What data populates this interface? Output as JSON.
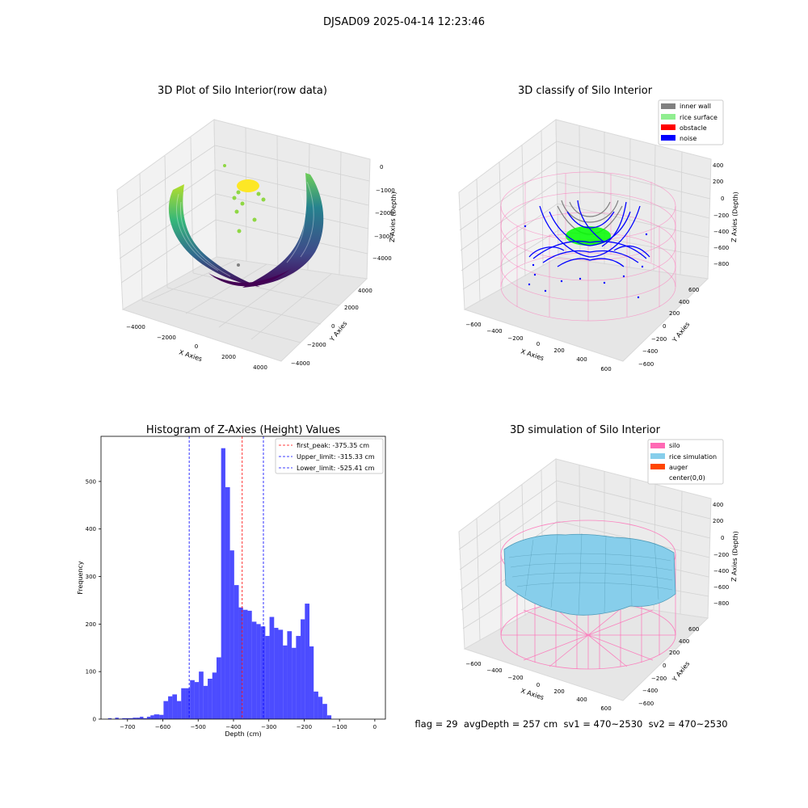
{
  "figure": {
    "suptitle": "DJSAD09 2025-04-14 12:23:46",
    "footer": "flag = 29  avgDepth = 257 cm  sv1 = 470~2530  sv2 = 470~2530"
  },
  "panels": {
    "raw": {
      "title": "3D Plot of Silo Interior(row data)",
      "xlabel": "X Axies",
      "ylabel": "Y Axies",
      "zlabel": "Z Axies (Depth)",
      "xticks": [
        "−4000",
        "−2000",
        "0",
        "2000",
        "4000"
      ],
      "yticks": [
        "−4000",
        "−2000",
        "0",
        "2000",
        "4000"
      ],
      "zticks": [
        "0",
        "−1000",
        "−2000",
        "−3000",
        "−4000"
      ]
    },
    "classify": {
      "title": "3D classify of Silo Interior",
      "xlabel": "X Axies",
      "ylabel": "Y Axies",
      "zlabel": "Z Axies (Depth)",
      "xticks": [
        "−600",
        "−400",
        "−200",
        "0",
        "200",
        "400",
        "600"
      ],
      "yticks": [
        "−600",
        "−400",
        "−200",
        "0",
        "200",
        "400",
        "600"
      ],
      "zticks": [
        "400",
        "200",
        "0",
        "−200",
        "−400",
        "−600",
        "−800"
      ],
      "legend": [
        {
          "label": "inner wall",
          "color": "#808080"
        },
        {
          "label": "rice surface",
          "color": "#90ee90"
        },
        {
          "label": "obstacle",
          "color": "#ff0000"
        },
        {
          "label": "noise",
          "color": "#0000ff"
        }
      ]
    },
    "simulation": {
      "title": "3D simulation of Silo Interior",
      "xlabel": "X Axies",
      "ylabel": "Y Axies",
      "zlabel": "Z Axies (Depth)",
      "xticks": [
        "−600",
        "−400",
        "−200",
        "0",
        "200",
        "400",
        "600"
      ],
      "yticks": [
        "−600",
        "−400",
        "−200",
        "0",
        "200",
        "400",
        "600"
      ],
      "zticks": [
        "400",
        "200",
        "0",
        "−200",
        "−400",
        "−600",
        "−800"
      ],
      "legend": [
        {
          "label": "silo",
          "color": "#ff69b4"
        },
        {
          "label": "rice simulation",
          "color": "#87ceeb"
        },
        {
          "label": "auger",
          "color": "#ff4500"
        },
        {
          "label": "center(0,0)",
          "color": "#ffffff"
        }
      ]
    }
  },
  "chart_data": [
    {
      "type": "histogram",
      "title": "Histogram of Z-Axies (Height) Values",
      "xlabel": "Depth (cm)",
      "ylabel": "Frequency",
      "xlim": [
        -775,
        30
      ],
      "ylim": [
        0,
        595
      ],
      "xticks": [
        -700,
        -600,
        -500,
        -400,
        -300,
        -200,
        -100,
        0
      ],
      "yticks": [
        0,
        100,
        200,
        300,
        400,
        500
      ],
      "bar_color": "#0000ff",
      "bar_opacity": 0.7,
      "bins": [
        {
          "left": -775,
          "right": -765,
          "count": 0
        },
        {
          "left": -765,
          "right": -755,
          "count": 0
        },
        {
          "left": -755,
          "right": -745,
          "count": 2
        },
        {
          "left": -745,
          "right": -735,
          "count": 0
        },
        {
          "left": -735,
          "right": -725,
          "count": 3
        },
        {
          "left": -725,
          "right": -715,
          "count": 1
        },
        {
          "left": -715,
          "right": -705,
          "count": 2
        },
        {
          "left": -705,
          "right": -695,
          "count": 2
        },
        {
          "left": -695,
          "right": -685,
          "count": 2
        },
        {
          "left": -685,
          "right": -675,
          "count": 3
        },
        {
          "left": -675,
          "right": -665,
          "count": 3
        },
        {
          "left": -665,
          "right": -655,
          "count": 5
        },
        {
          "left": -655,
          "right": -645,
          "count": 2
        },
        {
          "left": -645,
          "right": -635,
          "count": 5
        },
        {
          "left": -635,
          "right": -625,
          "count": 8
        },
        {
          "left": -625,
          "right": -610,
          "count": 10
        },
        {
          "left": -610,
          "right": -598,
          "count": 9
        },
        {
          "left": -598,
          "right": -585,
          "count": 38
        },
        {
          "left": -585,
          "right": -573,
          "count": 48
        },
        {
          "left": -573,
          "right": -560,
          "count": 52
        },
        {
          "left": -560,
          "right": -548,
          "count": 38
        },
        {
          "left": -548,
          "right": -535,
          "count": 65
        },
        {
          "left": -535,
          "right": -523,
          "count": 65
        },
        {
          "left": -523,
          "right": -510,
          "count": 82
        },
        {
          "left": -510,
          "right": -498,
          "count": 78
        },
        {
          "left": -498,
          "right": -485,
          "count": 100
        },
        {
          "left": -485,
          "right": -473,
          "count": 70
        },
        {
          "left": -473,
          "right": -460,
          "count": 85
        },
        {
          "left": -460,
          "right": -448,
          "count": 98
        },
        {
          "left": -448,
          "right": -435,
          "count": 130
        },
        {
          "left": -435,
          "right": -423,
          "count": 570
        },
        {
          "left": -423,
          "right": -410,
          "count": 488
        },
        {
          "left": -410,
          "right": -398,
          "count": 355
        },
        {
          "left": -398,
          "right": -385,
          "count": 282
        },
        {
          "left": -385,
          "right": -373,
          "count": 235
        },
        {
          "left": -373,
          "right": -360,
          "count": 230
        },
        {
          "left": -360,
          "right": -348,
          "count": 228
        },
        {
          "left": -348,
          "right": -335,
          "count": 205
        },
        {
          "left": -335,
          "right": -323,
          "count": 200
        },
        {
          "left": -323,
          "right": -310,
          "count": 195
        },
        {
          "left": -310,
          "right": -298,
          "count": 175
        },
        {
          "left": -298,
          "right": -285,
          "count": 215
        },
        {
          "left": -285,
          "right": -273,
          "count": 192
        },
        {
          "left": -273,
          "right": -260,
          "count": 188
        },
        {
          "left": -260,
          "right": -248,
          "count": 155
        },
        {
          "left": -248,
          "right": -235,
          "count": 185
        },
        {
          "left": -235,
          "right": -223,
          "count": 150
        },
        {
          "left": -223,
          "right": -210,
          "count": 175
        },
        {
          "left": -210,
          "right": -198,
          "count": 210
        },
        {
          "left": -198,
          "right": -185,
          "count": 243
        },
        {
          "left": -185,
          "right": -173,
          "count": 153
        },
        {
          "left": -173,
          "right": -160,
          "count": 58
        },
        {
          "left": -160,
          "right": -148,
          "count": 47
        },
        {
          "left": -148,
          "right": -135,
          "count": 32
        },
        {
          "left": -135,
          "right": -123,
          "count": 8
        }
      ],
      "vlines": [
        {
          "label": "first_peak: -375.35 cm",
          "x": -375.35,
          "color": "#ff0000"
        },
        {
          "label": "Upper_limit: -315.33 cm",
          "x": -315.33,
          "color": "#0000ff"
        },
        {
          "label": "Lower_limit: -525.41 cm",
          "x": -525.41,
          "color": "#0000ff"
        }
      ],
      "legend_position": "upper right",
      "grid": false
    }
  ]
}
